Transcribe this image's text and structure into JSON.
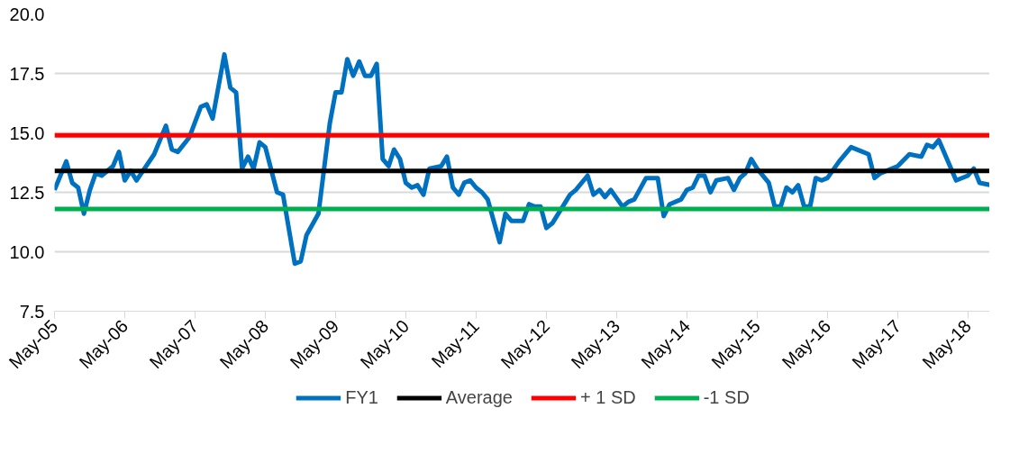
{
  "chart_data": {
    "type": "line",
    "x": [
      "2005-05",
      "2005-07",
      "2005-08",
      "2005-09",
      "2005-10",
      "2005-11",
      "2005-12",
      "2006-01",
      "2006-03",
      "2006-04",
      "2006-05",
      "2006-06",
      "2006-07",
      "2006-10",
      "2006-12",
      "2007-01",
      "2007-02",
      "2007-04",
      "2007-06",
      "2007-07",
      "2007-08",
      "2007-10",
      "2007-11",
      "2007-12",
      "2008-01",
      "2008-02",
      "2008-03",
      "2008-04",
      "2008-05",
      "2008-07",
      "2008-08",
      "2008-10",
      "2008-11",
      "2008-12",
      "2009-02",
      "2009-04",
      "2009-05",
      "2009-06",
      "2009-07",
      "2009-08",
      "2009-09",
      "2009-10",
      "2009-11",
      "2009-12",
      "2010-01",
      "2010-02",
      "2010-03",
      "2010-04",
      "2010-05",
      "2010-06",
      "2010-07",
      "2010-08",
      "2010-09",
      "2010-11",
      "2010-12",
      "2011-01",
      "2011-02",
      "2011-03",
      "2011-04",
      "2011-05",
      "2011-06",
      "2011-07",
      "2011-09",
      "2011-10",
      "2011-11",
      "2012-01",
      "2012-02",
      "2012-03",
      "2012-04",
      "2012-05",
      "2012-06",
      "2012-09",
      "2012-10",
      "2012-12",
      "2013-01",
      "2013-02",
      "2013-03",
      "2013-04",
      "2013-06",
      "2013-07",
      "2013-08",
      "2013-10",
      "2013-12",
      "2014-01",
      "2014-02",
      "2014-04",
      "2014-05",
      "2014-06",
      "2014-07",
      "2014-08",
      "2014-09",
      "2014-10",
      "2014-12",
      "2015-01",
      "2015-02",
      "2015-03",
      "2015-04",
      "2015-05",
      "2015-07",
      "2015-08",
      "2015-09",
      "2015-10",
      "2015-11",
      "2015-12",
      "2016-01",
      "2016-02",
      "2016-03",
      "2016-04",
      "2016-05",
      "2016-07",
      "2016-09",
      "2016-11",
      "2016-12",
      "2017-01",
      "2017-02",
      "2017-05",
      "2017-07",
      "2017-09",
      "2017-10",
      "2017-11",
      "2017-12",
      "2018-03",
      "2018-05",
      "2018-06",
      "2018-07",
      "2018-09"
    ],
    "series": [
      {
        "name": "FY1",
        "color": "#0070c0",
        "values": [
          12.6,
          13.8,
          12.9,
          12.7,
          11.6,
          12.6,
          13.3,
          13.2,
          13.6,
          14.2,
          13.0,
          13.4,
          13.0,
          14.1,
          15.3,
          14.3,
          14.2,
          14.8,
          16.1,
          16.2,
          15.6,
          18.3,
          16.9,
          16.7,
          13.5,
          14.0,
          13.5,
          14.6,
          14.4,
          12.5,
          12.4,
          9.5,
          9.6,
          10.7,
          11.6,
          15.4,
          16.7,
          16.7,
          18.1,
          17.4,
          18.0,
          17.4,
          17.4,
          17.9,
          13.9,
          13.6,
          14.3,
          13.9,
          12.9,
          12.7,
          12.8,
          12.4,
          13.5,
          13.6,
          14.0,
          12.7,
          12.4,
          12.9,
          13.0,
          12.7,
          12.5,
          12.2,
          10.4,
          11.6,
          11.3,
          11.3,
          12.0,
          11.9,
          11.9,
          11.0,
          11.2,
          12.4,
          12.6,
          13.2,
          12.4,
          12.6,
          12.3,
          12.6,
          11.9,
          12.1,
          12.2,
          13.1,
          13.1,
          11.5,
          12.0,
          12.2,
          12.6,
          12.7,
          13.2,
          13.2,
          12.5,
          13.0,
          13.1,
          12.6,
          13.1,
          13.3,
          13.9,
          13.5,
          12.9,
          11.9,
          11.9,
          12.7,
          12.5,
          12.8,
          11.9,
          11.9,
          13.1,
          13.0,
          13.1,
          13.8,
          14.4,
          14.2,
          14.1,
          13.1,
          13.3,
          13.6,
          14.1,
          14.0,
          14.5,
          14.4,
          14.7,
          13.0,
          13.2,
          13.5,
          12.9,
          12.8
        ]
      },
      {
        "name": "Average",
        "color": "#000000",
        "x": [
          "2005-05",
          "2018-09"
        ],
        "values": [
          13.4,
          13.4
        ]
      },
      {
        "name": "+ 1 SD",
        "color": "#ff0000",
        "x": [
          "2005-05",
          "2018-09"
        ],
        "values": [
          14.9,
          14.9
        ]
      },
      {
        "name": "-1 SD",
        "color": "#00b050",
        "x": [
          "2005-05",
          "2018-09"
        ],
        "values": [
          11.8,
          11.8
        ]
      }
    ],
    "xlim": [
      "2005-05",
      "2018-09"
    ],
    "xticks": [
      {
        "value": "2005-05",
        "label": "May-05"
      },
      {
        "value": "2006-05",
        "label": "May-06"
      },
      {
        "value": "2007-05",
        "label": "May-07"
      },
      {
        "value": "2008-05",
        "label": "May-08"
      },
      {
        "value": "2009-05",
        "label": "May-09"
      },
      {
        "value": "2010-05",
        "label": "May-10"
      },
      {
        "value": "2011-05",
        "label": "May-11"
      },
      {
        "value": "2012-05",
        "label": "May-12"
      },
      {
        "value": "2013-05",
        "label": "May-13"
      },
      {
        "value": "2014-05",
        "label": "May-14"
      },
      {
        "value": "2015-05",
        "label": "May-15"
      },
      {
        "value": "2016-05",
        "label": "May-16"
      },
      {
        "value": "2017-05",
        "label": "May-17"
      },
      {
        "value": "2018-05",
        "label": "May-18"
      }
    ],
    "ylim": [
      7.5,
      20.0
    ],
    "yticks": [
      {
        "value": 7.5,
        "label": "7.5"
      },
      {
        "value": 10,
        "label": "10.0"
      },
      {
        "value": 12.5,
        "label": "12.5"
      },
      {
        "value": 15,
        "label": "15.0"
      },
      {
        "value": 17.5,
        "label": "17.5"
      },
      {
        "value": 20,
        "label": "20.0"
      }
    ],
    "grid": "y",
    "legend": "bottom",
    "marker": "none",
    "line_style": "solid"
  }
}
